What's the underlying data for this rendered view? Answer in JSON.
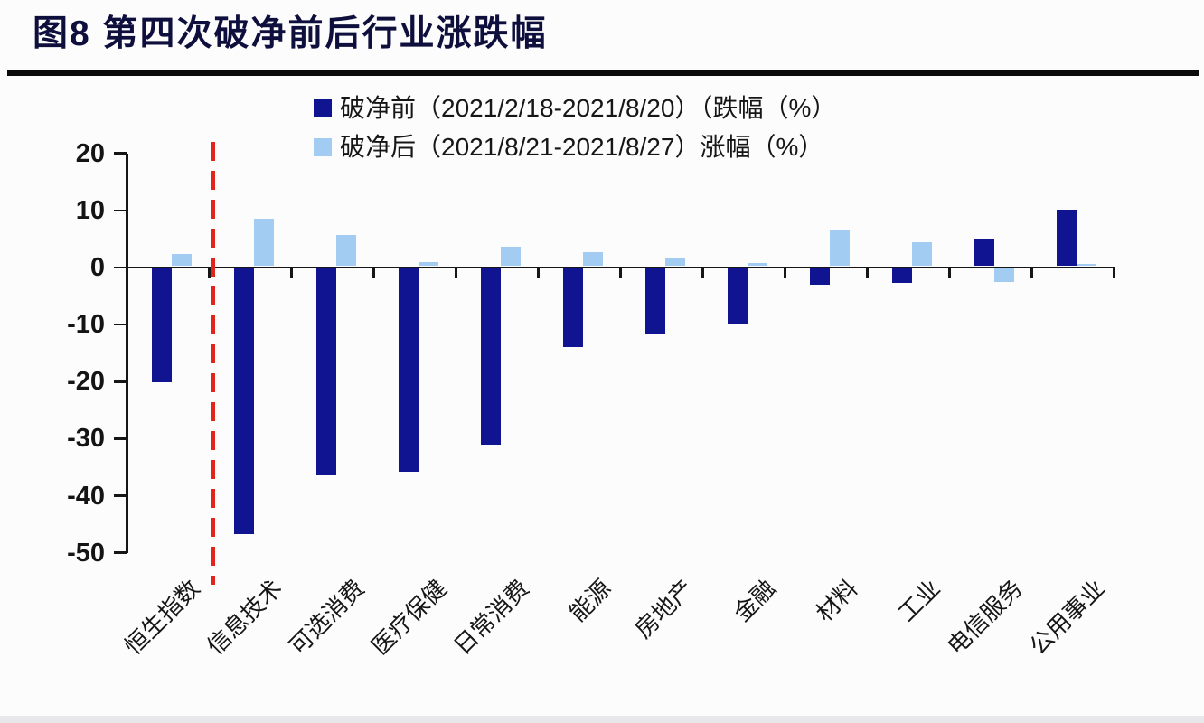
{
  "title": "图8  第四次破净前后行业涨跌幅",
  "chart_data": {
    "type": "bar",
    "title": "图8  第四次破净前后行业涨跌幅",
    "categories": [
      "恒生指数",
      "信息技术",
      "可选消费",
      "医疗保健",
      "日常消费",
      "能源",
      "房地产",
      "金融",
      "材料",
      "工业",
      "电信服务",
      "公用事业"
    ],
    "series": [
      {
        "name": "破净前（2021/2/18-2021/8/20）（跌幅（%）",
        "color": "#101490",
        "values": [
          -20.0,
          -46.6,
          -36.2,
          -35.6,
          -30.9,
          -13.8,
          -11.5,
          -9.6,
          -2.9,
          -2.5,
          4.6,
          9.9
        ]
      },
      {
        "name": "破净后（2021/8/21-2021/8/27）涨幅（%）",
        "color": "#a2ccf2",
        "values": [
          2.2,
          8.3,
          5.4,
          0.7,
          3.4,
          2.5,
          1.4,
          0.5,
          6.2,
          4.2,
          -2.3,
          0.4
        ]
      }
    ],
    "y_ticks": [
      20,
      10,
      0,
      -10,
      -20,
      -30,
      -40,
      -50
    ],
    "ylim": [
      -50,
      20
    ],
    "grid": false,
    "legend_position": "top-center",
    "annotations": [
      {
        "type": "vline",
        "style": "dashed",
        "color": "#e1251b",
        "after_category_index": 0,
        "meaning": "破净分界线"
      }
    ]
  }
}
